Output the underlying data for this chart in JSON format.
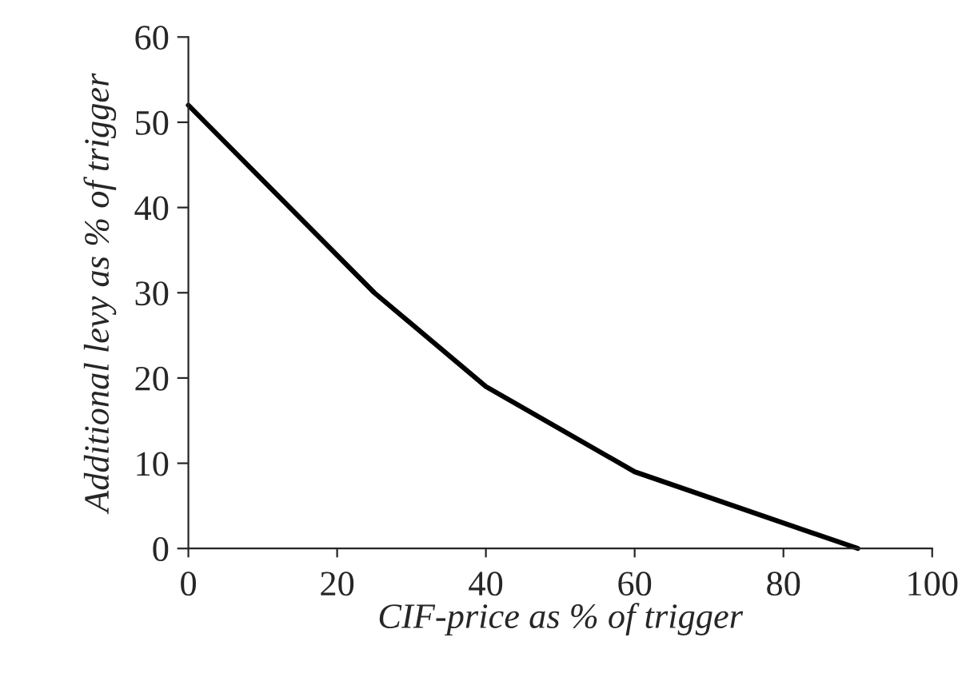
{
  "chart_data": {
    "type": "line",
    "xlabel": "CIF-price as % of trigger",
    "ylabel": "Additional levy as % of trigger",
    "x": [
      0,
      25,
      40,
      60,
      90
    ],
    "series": [
      {
        "color": "#000000",
        "values": [
          52,
          30,
          19,
          9,
          0
        ]
      }
    ],
    "xlim": [
      0,
      100
    ],
    "xticks": [
      0,
      20,
      40,
      60,
      80,
      100
    ],
    "ylim": [
      0,
      60
    ],
    "yticks": [
      0,
      10,
      20,
      30,
      40,
      50,
      60
    ],
    "grid": false,
    "legend": false,
    "marker": "none",
    "line_style": "solid"
  }
}
